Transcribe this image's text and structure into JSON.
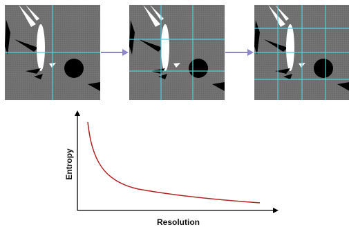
{
  "panels": [
    {
      "name": "coarse-grid",
      "vertical_lines": 1,
      "horizontal_lines": 1
    },
    {
      "name": "medium-grid",
      "vertical_lines": 2,
      "horizontal_lines": 2
    },
    {
      "name": "fine-grid",
      "vertical_lines": 3,
      "horizontal_lines": 3
    }
  ],
  "colors": {
    "panel_background": "#6e6e6e",
    "grid_line": "#4fd1d9",
    "arrow": "#8d86c9",
    "curve": "#b22222",
    "axis": "#000000"
  },
  "chart_data": {
    "type": "line",
    "xlabel": "Resolution",
    "ylabel": "Entropy",
    "description_points": [
      [
        0.05,
        0.95
      ],
      [
        0.1,
        0.55
      ],
      [
        0.2,
        0.3
      ],
      [
        0.35,
        0.18
      ],
      [
        0.6,
        0.12
      ],
      [
        1.0,
        0.08
      ]
    ]
  }
}
